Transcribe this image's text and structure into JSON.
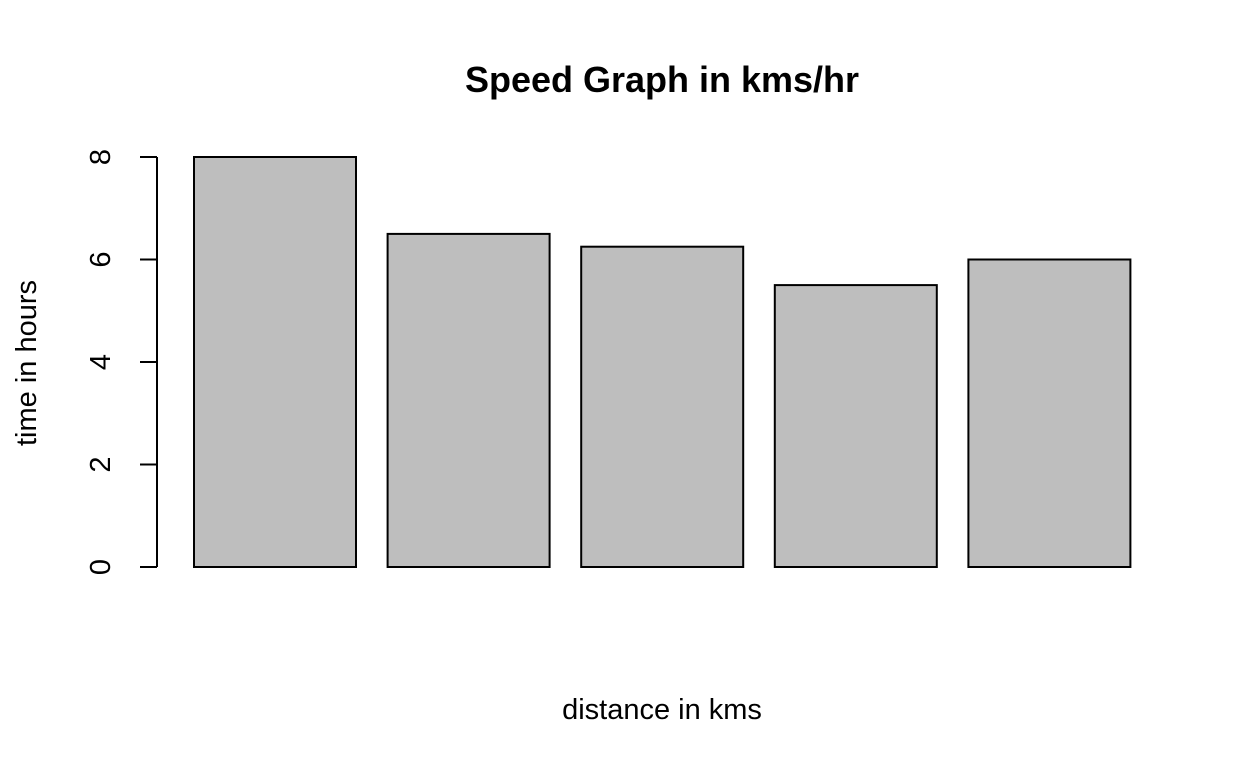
{
  "chart_data": {
    "type": "bar",
    "title": "Speed Graph in kms/hr",
    "xlabel": "distance in kms",
    "ylabel": "time in hours",
    "categories": [
      "",
      "",
      "",
      "",
      ""
    ],
    "values": [
      8,
      6.5,
      6.25,
      5.5,
      6
    ],
    "ylim": [
      0,
      8
    ],
    "yticks": [
      0,
      2,
      4,
      6,
      8
    ],
    "grid": false,
    "legend": "none",
    "colors": {
      "bar_fill": "#bebebe",
      "bar_stroke": "#000000",
      "axis": "#000000",
      "text": "#000000",
      "background": "#ffffff"
    }
  }
}
